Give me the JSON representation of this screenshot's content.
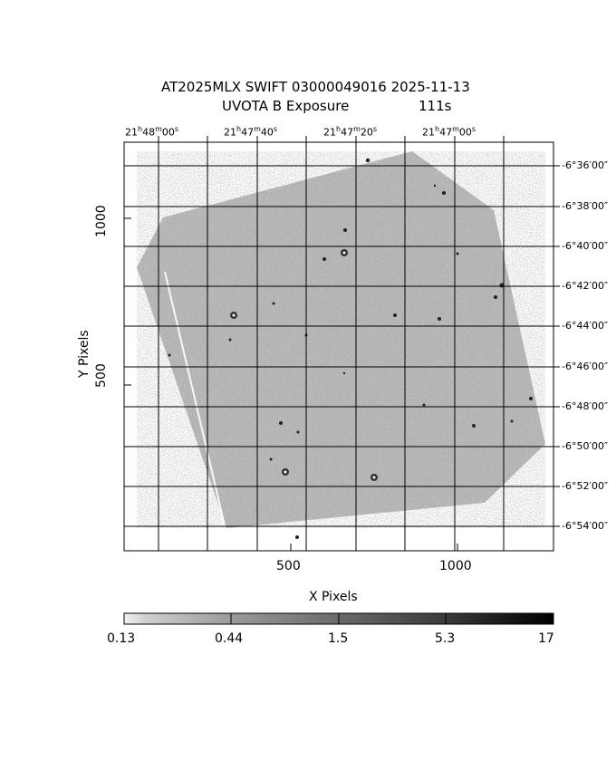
{
  "title": {
    "line1": "AT2025MLX SWIFT 03000049016 2025-11-13",
    "line2_left": "UVOTA B Exposure",
    "line2_right": "111s"
  },
  "axes": {
    "xlabel": "X Pixels",
    "ylabel": "Y Pixels",
    "x_ticks": [
      {
        "value": 500,
        "label": "500"
      },
      {
        "value": 1000,
        "label": "1000"
      }
    ],
    "y_ticks": [
      {
        "value": 500,
        "label": "500"
      },
      {
        "value": 1000,
        "label": "1000"
      }
    ],
    "x_range": [
      0,
      1295
    ],
    "y_range": [
      0,
      1230
    ],
    "ra_ticks": [
      {
        "h": "21",
        "m": "48",
        "s": "00"
      },
      {
        "h": "21",
        "m": "47",
        "s": "40"
      },
      {
        "h": "21",
        "m": "47",
        "s": "20"
      },
      {
        "h": "21",
        "m": "47",
        "s": "00"
      }
    ],
    "dec_ticks": [
      {
        "label": "-6°36′00″"
      },
      {
        "label": "-6°38′00″"
      },
      {
        "label": "-6°40′00″"
      },
      {
        "label": "-6°42′00″"
      },
      {
        "label": "-6°44′00″"
      },
      {
        "label": "-6°46′00″"
      },
      {
        "label": "-6°48′00″"
      },
      {
        "label": "-6°50′00″"
      },
      {
        "label": "-6°52′00″"
      },
      {
        "label": "-6°54′00″"
      }
    ]
  },
  "colorbar": {
    "labels": [
      "0.13",
      "0.44",
      "1.5",
      "5.3",
      "17"
    ]
  },
  "colors": {
    "background": "#ffffff",
    "image_gray": "#a6a6a6",
    "grid": "#000000"
  }
}
